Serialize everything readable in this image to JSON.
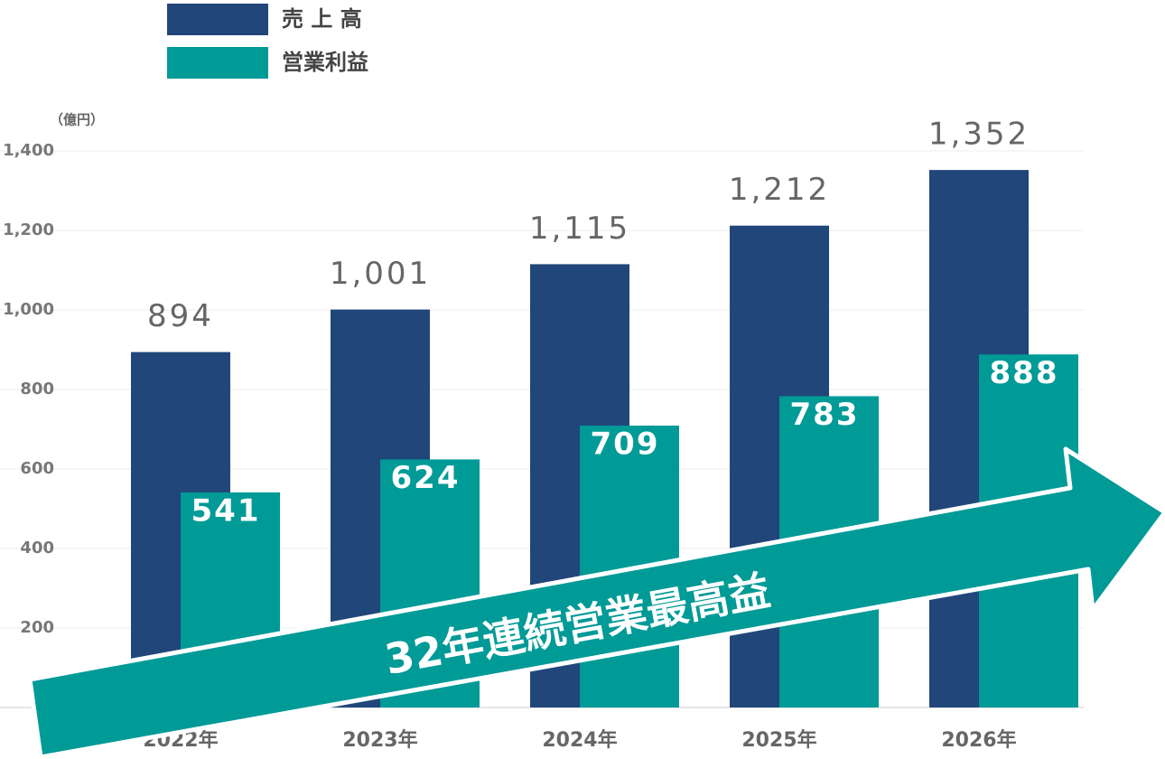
{
  "chart_data": {
    "type": "bar",
    "unit_label": "（億円）",
    "categories": [
      "2022年",
      "2023年",
      "2024年",
      "2025年",
      "2026年"
    ],
    "series": [
      {
        "name": "売 上 高",
        "color": "#21467a",
        "values": [
          894,
          1001,
          1115,
          1212,
          1352
        ],
        "value_labels": [
          "894",
          "1,001",
          "1,115",
          "1,212",
          "1,352"
        ]
      },
      {
        "name": "営業利益",
        "color": "#009a97",
        "values": [
          541,
          624,
          709,
          783,
          888
        ]
      }
    ],
    "ylim": [
      0,
      1400
    ],
    "yticks": [
      200,
      400,
      600,
      800,
      {
        "value": 1000,
        "label": "1,000"
      },
      {
        "value": 1200,
        "label": "1,200"
      },
      {
        "value": 1400,
        "label": "1,400"
      }
    ],
    "grid": true,
    "annotation": "32年連続営業最高益"
  }
}
